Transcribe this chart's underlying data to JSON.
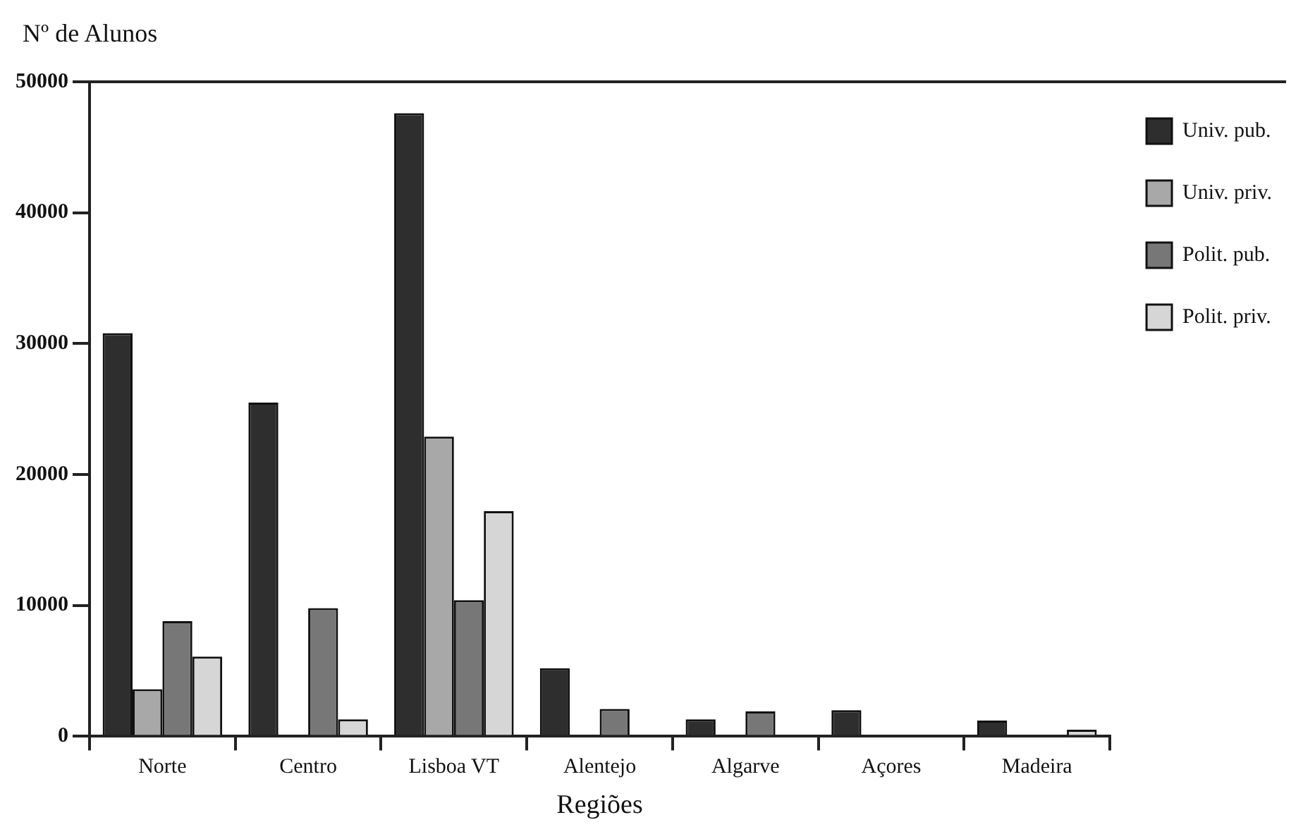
{
  "chart_data": {
    "type": "bar",
    "xlabel": "Regiões",
    "ylabel": "Nº de Alunos",
    "categories": [
      "Norte",
      "Centro",
      "Lisboa VT",
      "Alentejo",
      "Algarve",
      "Açores",
      "Madeira"
    ],
    "series": [
      {
        "name": "Univ. pub.",
        "color": "#2e2e2e",
        "values": [
          30800,
          25500,
          47600,
          5200,
          1300,
          2000,
          1200
        ]
      },
      {
        "name": "Univ. priv.",
        "color": "#a8a8a8",
        "values": [
          3600,
          null,
          22900,
          null,
          null,
          null,
          null
        ]
      },
      {
        "name": "Polit. pub.",
        "color": "#777777",
        "values": [
          8800,
          9800,
          10400,
          2100,
          1900,
          null,
          null
        ]
      },
      {
        "name": "Polit. priv.",
        "color": "#d6d6d6",
        "values": [
          6100,
          1300,
          17200,
          null,
          null,
          null,
          500
        ]
      }
    ],
    "ylim": [
      0,
      50000
    ],
    "yticks": [
      0,
      10000,
      20000,
      30000,
      40000,
      50000
    ],
    "legend": "top right"
  }
}
